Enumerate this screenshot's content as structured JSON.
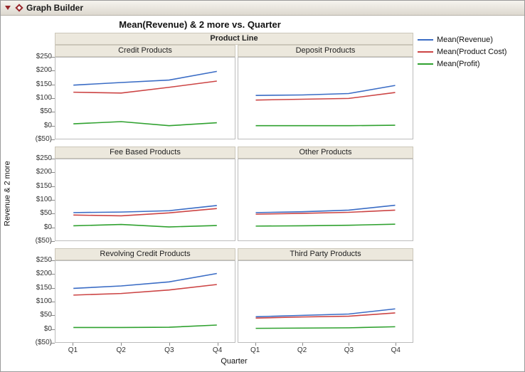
{
  "window": {
    "title": "Graph Builder"
  },
  "chart_data": {
    "type": "line",
    "title": "Mean(Revenue) & 2 more vs. Quarter",
    "trellis_label": "Product Line",
    "xlabel": "Quarter",
    "ylabel": "Revenue & 2 more",
    "x": [
      "Q1",
      "Q2",
      "Q3",
      "Q4"
    ],
    "ylim": [
      -50,
      250
    ],
    "y_ticks": [
      {
        "label": "$250",
        "value": 250
      },
      {
        "label": "$200",
        "value": 200
      },
      {
        "label": "$150",
        "value": 150
      },
      {
        "label": "$100",
        "value": 100
      },
      {
        "label": "$50",
        "value": 50
      },
      {
        "label": "$0",
        "value": 0
      },
      {
        "label": "($50)",
        "value": -50
      }
    ],
    "legend_position": "right",
    "grid": false,
    "series": [
      {
        "name": "Mean(Revenue)",
        "color": "#3a6cc5"
      },
      {
        "name": "Mean(Product Cost)",
        "color": "#cc4444"
      },
      {
        "name": "Mean(Profit)",
        "color": "#2fa12f"
      }
    ],
    "panels": [
      {
        "name": "Credit Products",
        "values": [
          [
            148,
            158,
            167,
            199
          ],
          [
            122,
            119,
            140,
            163
          ],
          [
            5,
            13,
            -2,
            9
          ]
        ]
      },
      {
        "name": "Deposit Products",
        "values": [
          [
            110,
            112,
            117,
            147
          ],
          [
            93,
            96,
            99,
            121
          ],
          [
            -2,
            -2,
            -2,
            0
          ]
        ]
      },
      {
        "name": "Fee Based Products",
        "values": [
          [
            53,
            55,
            60,
            79
          ],
          [
            44,
            41,
            52,
            68
          ],
          [
            4,
            9,
            0,
            5
          ]
        ]
      },
      {
        "name": "Other Products",
        "values": [
          [
            53,
            56,
            62,
            80
          ],
          [
            47,
            50,
            54,
            62
          ],
          [
            3,
            4,
            6,
            10
          ]
        ]
      },
      {
        "name": "Revolving Credit Products",
        "values": [
          [
            149,
            158,
            173,
            204
          ],
          [
            124,
            130,
            143,
            163
          ],
          [
            4,
            4,
            5,
            13
          ]
        ]
      },
      {
        "name": "Third Party Products",
        "values": [
          [
            44,
            49,
            54,
            73
          ],
          [
            39,
            43,
            46,
            58
          ],
          [
            1,
            2,
            3,
            7
          ]
        ]
      }
    ]
  }
}
